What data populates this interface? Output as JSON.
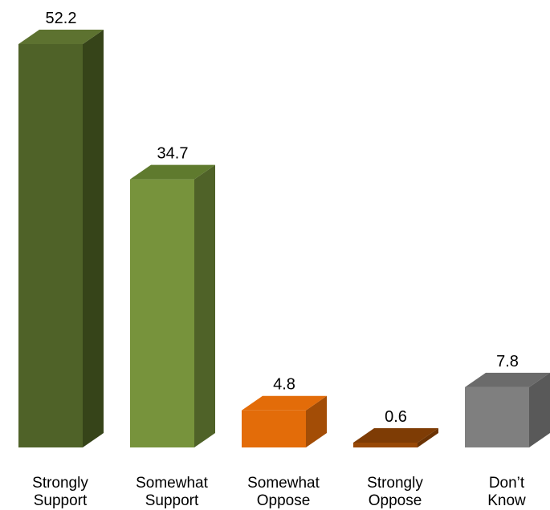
{
  "chart_data": {
    "type": "bar",
    "style": "3d-column",
    "categories": [
      [
        "Strongly",
        "Support"
      ],
      [
        "Somewhat",
        "Support"
      ],
      [
        "Somewhat",
        "Oppose"
      ],
      [
        "Strongly",
        "Oppose"
      ],
      [
        "Don’t",
        "Know"
      ]
    ],
    "values": [
      52.2,
      34.7,
      4.8,
      0.6,
      7.8
    ],
    "value_labels": [
      "52.2",
      "34.7",
      "4.8",
      "0.6",
      "7.8"
    ],
    "colors": [
      {
        "front": "#4f6228",
        "side": "#364419",
        "top": "#5d7230"
      },
      {
        "front": "#77933c",
        "side": "#4f6228",
        "top": "#5f7a2e"
      },
      {
        "front": "#e36c09",
        "side": "#a34d06",
        "top": "#e36c09"
      },
      {
        "front": "#974806",
        "side": "#6b3304",
        "top": "#7e3c05"
      },
      {
        "front": "#7f7f7f",
        "side": "#595959",
        "top": "#6b6b6b"
      }
    ],
    "ylim": [
      0,
      52.2
    ],
    "grid": false,
    "legend": "none",
    "title": "",
    "xlabel": "",
    "ylabel": ""
  }
}
